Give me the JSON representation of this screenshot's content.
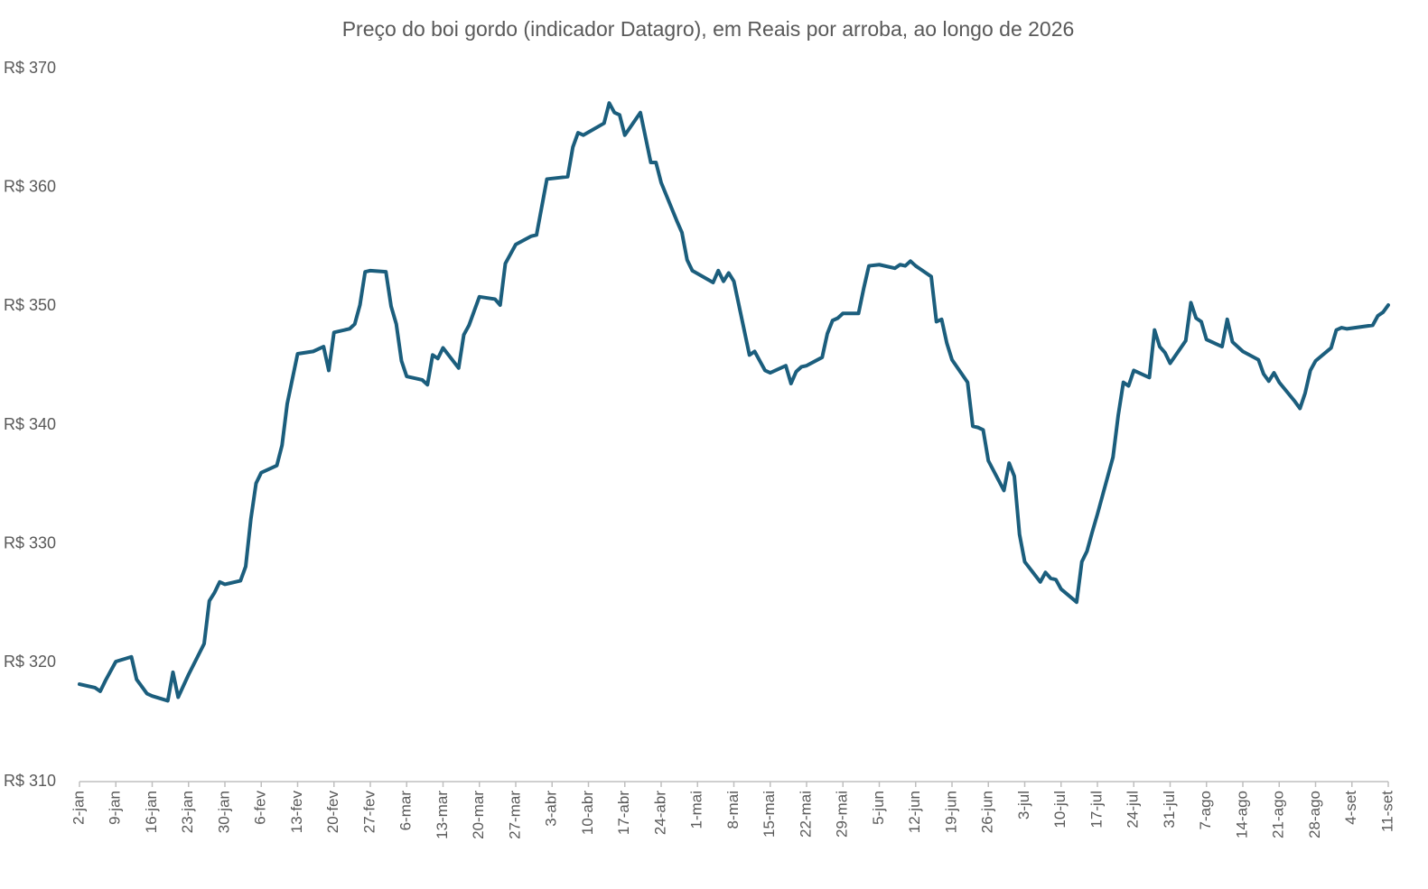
{
  "chart_data": {
    "type": "line",
    "title": "Preço do boi gordo (indicador Datagro), em Reais por arroba, ao longo de 2026",
    "x": [
      "2-jan",
      "5-jan",
      "6-jan",
      "7-jan",
      "9-jan",
      "12-jan",
      "13-jan",
      "15-jan",
      "16-jan",
      "19-jan",
      "20-jan",
      "21-jan",
      "23-jan",
      "26-jan",
      "27-jan",
      "28-jan",
      "29-jan",
      "30-jan",
      "2-fev",
      "3-fev",
      "4-fev",
      "5-fev",
      "6-fev",
      "9-fev",
      "10-fev",
      "11-fev",
      "13-fev",
      "16-fev",
      "18-fev",
      "19-fev",
      "20-fev",
      "23-fev",
      "24-fev",
      "25-fev",
      "26-fev",
      "27-fev",
      "2-mar",
      "3-mar",
      "4-mar",
      "5-mar",
      "6-mar",
      "9-mar",
      "10-mar",
      "11-mar",
      "12-mar",
      "13-mar",
      "16-mar",
      "17-mar",
      "18-mar",
      "19-mar",
      "20-mar",
      "23-mar",
      "24-mar",
      "25-mar",
      "26-mar",
      "27-mar",
      "30-mar",
      "31-mar",
      "2-abr",
      "6-abr",
      "7-abr",
      "8-abr",
      "9-abr",
      "13-abr",
      "14-abr",
      "15-abr",
      "16-abr",
      "17-abr",
      "20-abr",
      "22-abr",
      "23-abr",
      "24-abr",
      "27-abr",
      "28-abr",
      "29-abr",
      "30-abr",
      "4-mai",
      "5-mai",
      "6-mai",
      "7-mai",
      "8-mai",
      "11-mai",
      "12-mai",
      "13-mai",
      "14-mai",
      "15-mai",
      "18-mai",
      "19-mai",
      "20-mai",
      "21-mai",
      "22-mai",
      "25-mai",
      "26-mai",
      "27-mai",
      "28-mai",
      "29-mai",
      "1-jun",
      "2-jun",
      "3-jun",
      "5-jun",
      "8-jun",
      "9-jun",
      "10-jun",
      "11-jun",
      "12-jun",
      "15-jun",
      "16-jun",
      "17-jun",
      "18-jun",
      "19-jun",
      "22-jun",
      "23-jun",
      "24-jun",
      "25-jun",
      "26-jun",
      "29-jun",
      "30-jun",
      "1-jul",
      "2-jul",
      "3-jul",
      "6-jul",
      "7-jul",
      "8-jul",
      "9-jul",
      "10-jul",
      "13-jul",
      "14-jul",
      "15-jul",
      "16-jul",
      "17-jul",
      "20-jul",
      "21-jul",
      "22-jul",
      "23-jul",
      "24-jul",
      "27-jul",
      "28-jul",
      "29-jul",
      "30-jul",
      "31-jul",
      "3-ago",
      "4-ago",
      "5-ago",
      "6-ago",
      "7-ago",
      "10-ago",
      "11-ago",
      "12-ago",
      "13-ago",
      "14-ago",
      "17-ago",
      "18-ago",
      "19-ago",
      "20-ago",
      "21-ago",
      "24-ago",
      "25-ago",
      "26-ago",
      "27-ago",
      "28-ago",
      "31-ago",
      "1-set",
      "2-set",
      "3-set",
      "8-set",
      "9-set",
      "10-set",
      "11-set"
    ],
    "series": [
      {
        "color": "#1b5e7d",
        "values": [
          318.2,
          317.9,
          317.6,
          318.5,
          320.1,
          320.5,
          318.6,
          317.4,
          317.2,
          316.8,
          319.2,
          317.1,
          319.0,
          321.6,
          325.2,
          325.9,
          326.8,
          326.6,
          326.9,
          328.1,
          332.1,
          335.1,
          336.0,
          336.6,
          338.3,
          341.8,
          346.0,
          346.2,
          346.6,
          344.6,
          347.8,
          348.1,
          348.5,
          350.1,
          352.9,
          353.0,
          352.9,
          350.0,
          348.5,
          345.4,
          344.1,
          343.8,
          343.4,
          345.9,
          345.6,
          346.5,
          344.8,
          347.6,
          348.4,
          349.6,
          350.8,
          350.6,
          350.1,
          353.6,
          354.4,
          355.2,
          355.9,
          356.0,
          360.7,
          360.9,
          363.4,
          364.6,
          364.4,
          365.4,
          367.1,
          366.3,
          366.1,
          364.4,
          366.3,
          362.1,
          362.1,
          360.4,
          357.2,
          356.2,
          353.9,
          353.0,
          352.0,
          353.0,
          352.1,
          352.8,
          352.1,
          345.9,
          346.2,
          345.4,
          344.6,
          344.4,
          345.0,
          343.5,
          344.5,
          344.9,
          345.0,
          345.7,
          347.7,
          348.8,
          349.0,
          349.4,
          349.4,
          351.5,
          353.4,
          353.5,
          353.2,
          353.5,
          353.4,
          353.8,
          353.4,
          352.5,
          348.7,
          348.9,
          346.9,
          345.5,
          343.6,
          339.9,
          339.8,
          339.6,
          337.0,
          334.5,
          336.8,
          335.7,
          330.8,
          328.5,
          326.8,
          327.6,
          327.1,
          327.0,
          326.2,
          325.1,
          328.5,
          329.4,
          331.0,
          332.5,
          337.3,
          340.8,
          343.6,
          343.3,
          344.6,
          344.0,
          348.0,
          346.6,
          346.1,
          345.2,
          347.1,
          350.3,
          349.0,
          348.7,
          347.2,
          346.6,
          348.9,
          347.0,
          346.6,
          346.2,
          345.5,
          344.3,
          343.7,
          344.4,
          343.6,
          342.0,
          341.4,
          342.7,
          344.6,
          345.4,
          346.5,
          348.0,
          348.2,
          348.1,
          348.4,
          349.2,
          349.5,
          350.1
        ]
      }
    ],
    "xticks": [
      "2-jan",
      "9-jan",
      "16-jan",
      "23-jan",
      "30-jan",
      "6-fev",
      "13-fev",
      "20-fev",
      "27-fev",
      "6-mar",
      "13-mar",
      "20-mar",
      "27-mar",
      "3-abr",
      "10-abr",
      "17-abr",
      "24-abr",
      "1-mai",
      "8-mai",
      "15-mai",
      "22-mai",
      "29-mai",
      "5-jun",
      "12-jun",
      "19-jun",
      "26-jun",
      "3-jul",
      "10-jul",
      "17-jul",
      "24-jul",
      "31-jul",
      "7-ago",
      "14-ago",
      "21-ago",
      "28-ago",
      "4-set",
      "11-set"
    ],
    "ylim": [
      310,
      370
    ],
    "yticks": [
      {
        "value": 310,
        "label": "R$ 310"
      },
      {
        "value": 320,
        "label": "R$ 320"
      },
      {
        "value": 330,
        "label": "R$ 330"
      },
      {
        "value": 340,
        "label": "R$ 340"
      },
      {
        "value": 350,
        "label": "R$ 350"
      },
      {
        "value": 360,
        "label": "R$ 360"
      },
      {
        "value": 370,
        "label": "R$ 370"
      }
    ],
    "grid": false
  }
}
